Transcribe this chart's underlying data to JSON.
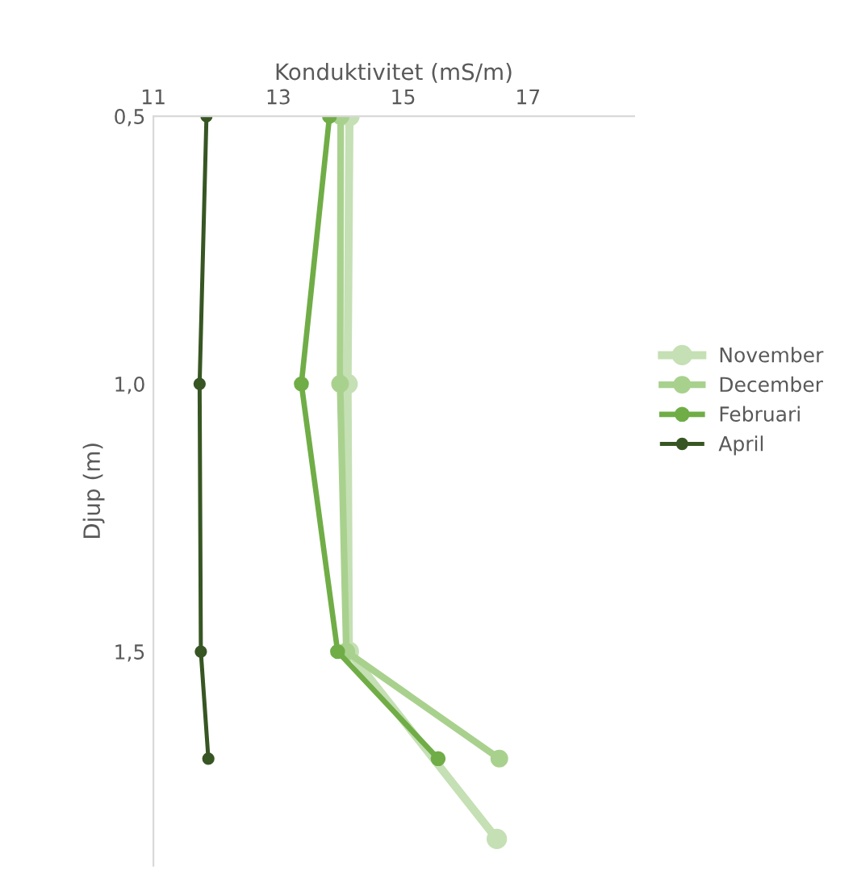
{
  "chart_data": {
    "type": "line",
    "xlabel": "Konduktivitet (mS/m)",
    "ylabel": "Djup (m)",
    "xlim": [
      11,
      18.7
    ],
    "xticks": [
      11,
      13,
      15,
      17
    ],
    "ylim": [
      1.9,
      0.5
    ],
    "yticks": [
      {
        "value": 0.5,
        "label": "0,5"
      },
      {
        "value": 1.0,
        "label": "1,0"
      },
      {
        "value": 1.5,
        "label": "1,5"
      }
    ],
    "marker": "circle",
    "legend": "right",
    "grid": false,
    "series": [
      {
        "name": "November",
        "color": "#c5e0b4",
        "x": [
          14.14,
          14.11,
          14.13,
          16.5
        ],
        "values": [
          0.5,
          1.0,
          1.5,
          1.85
        ]
      },
      {
        "name": "December",
        "color": "#a9d18e",
        "x": [
          14.0,
          13.99,
          14.09,
          16.54
        ],
        "values": [
          0.5,
          1.0,
          1.5,
          1.7
        ]
      },
      {
        "name": "Februari",
        "color": "#70ad47",
        "x": [
          13.82,
          13.37,
          13.95,
          15.56
        ],
        "values": [
          0.5,
          1.0,
          1.5,
          1.7
        ]
      },
      {
        "name": "April",
        "color": "#375623",
        "x": [
          11.85,
          11.74,
          11.76,
          11.88
        ],
        "values": [
          0.5,
          1.0,
          1.5,
          1.7
        ]
      }
    ]
  }
}
